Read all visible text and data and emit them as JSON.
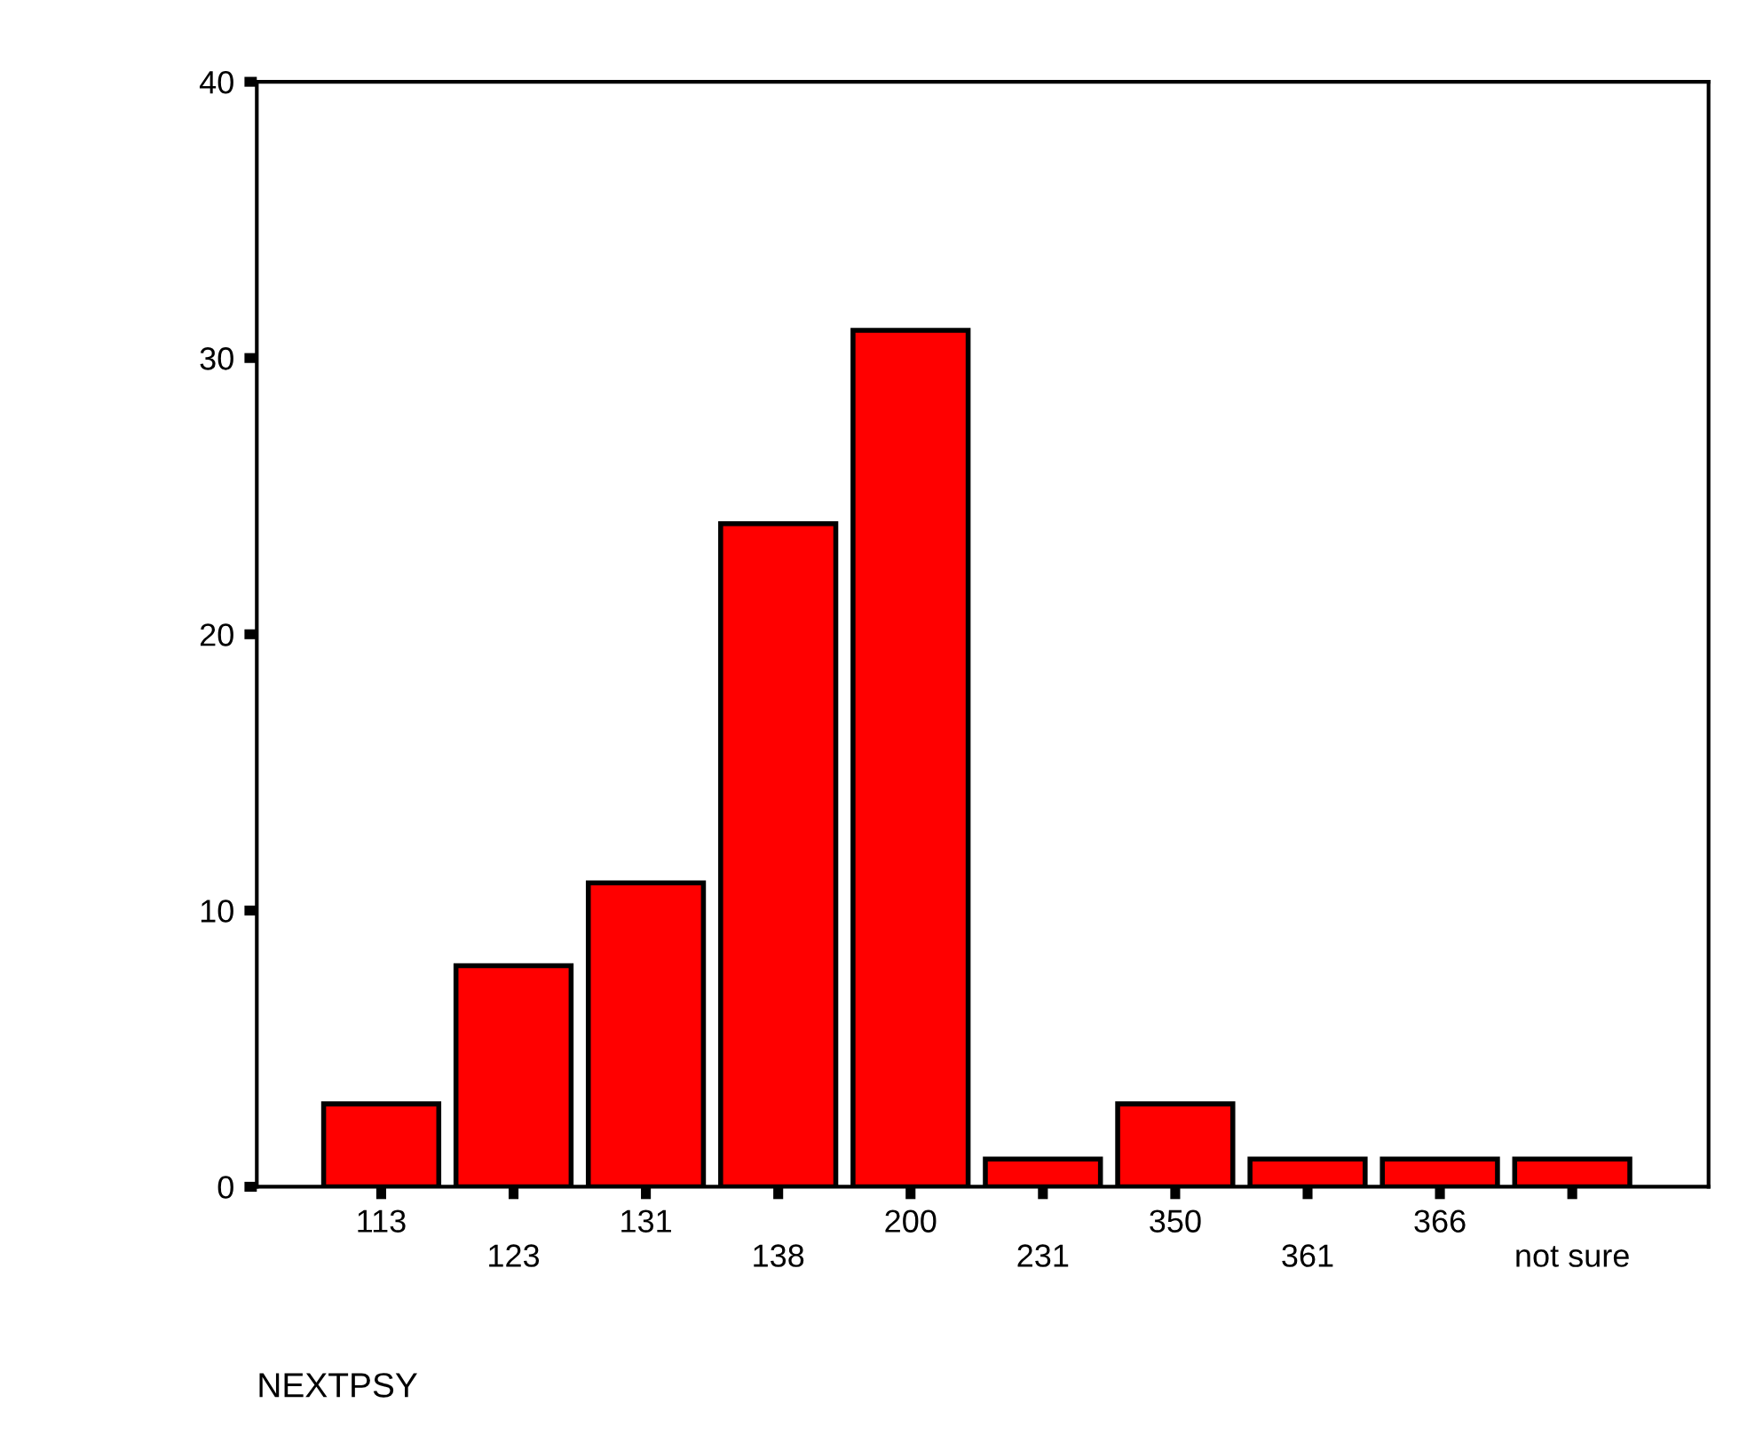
{
  "chart_data": {
    "type": "bar",
    "xlabel": "NEXTPSY",
    "categories": [
      "113",
      "123",
      "131",
      "138",
      "200",
      "231",
      "350",
      "361",
      "366",
      "not sure"
    ],
    "values": [
      3,
      8,
      11,
      24,
      31,
      1,
      3,
      1,
      1,
      1
    ],
    "color": "#ff0000",
    "ylim": [
      0,
      40
    ],
    "yticks": [
      0,
      10,
      20,
      30,
      40
    ],
    "grid": false,
    "legend": false
  }
}
